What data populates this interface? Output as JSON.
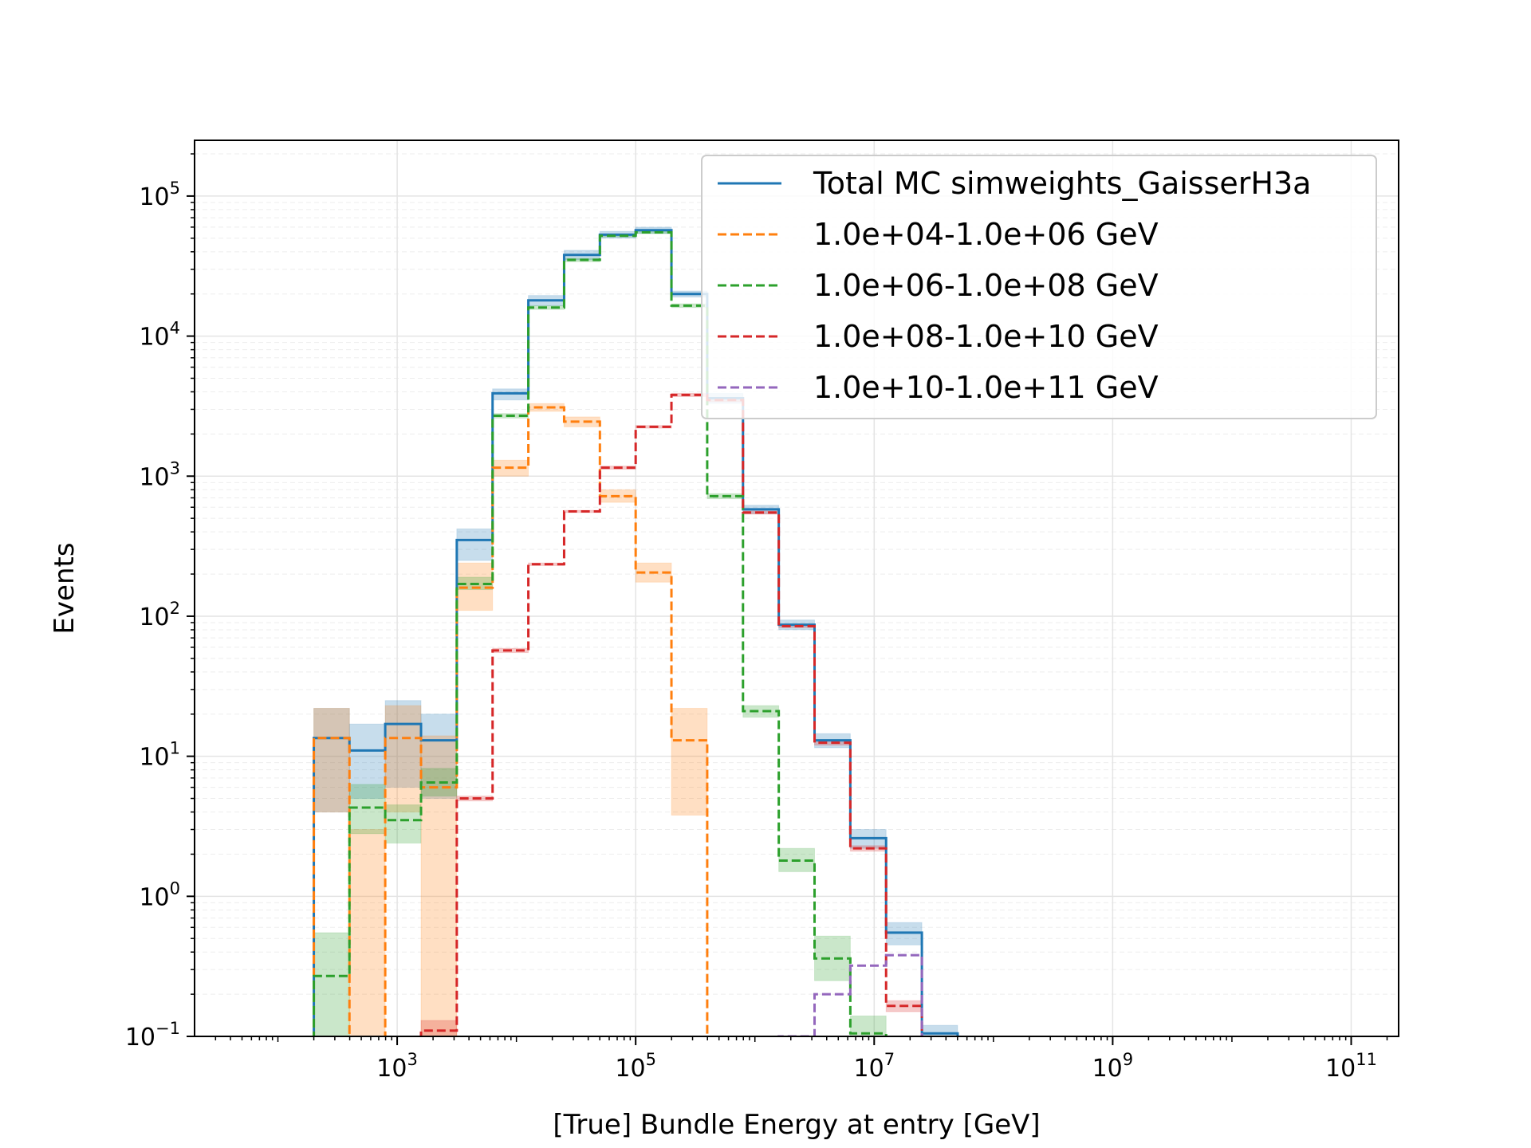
{
  "chart_data": {
    "type": "step-histogram",
    "xlabel": "[True] Bundle Energy at entry [GeV]",
    "ylabel": "Events",
    "xscale": "log",
    "yscale": "log",
    "xlim": [
      20,
      250000000000
    ],
    "ylim": [
      0.1,
      250000
    ],
    "grid": true,
    "legend_position": "top-right",
    "x_ticks": [
      {
        "value": 1000,
        "base": "10",
        "exp": "3"
      },
      {
        "value": 100000,
        "base": "10",
        "exp": "5"
      },
      {
        "value": 10000000,
        "base": "10",
        "exp": "7"
      },
      {
        "value": 1000000000,
        "base": "10",
        "exp": "9"
      },
      {
        "value": 100000000000,
        "base": "10",
        "exp": "11"
      }
    ],
    "y_ticks": [
      {
        "value": 0.1,
        "base": "10",
        "exp": "−1"
      },
      {
        "value": 1,
        "base": "10",
        "exp": "0"
      },
      {
        "value": 10,
        "base": "10",
        "exp": "1"
      },
      {
        "value": 100,
        "base": "10",
        "exp": "2"
      },
      {
        "value": 1000,
        "base": "10",
        "exp": "3"
      },
      {
        "value": 10000,
        "base": "10",
        "exp": "4"
      },
      {
        "value": 100000,
        "base": "10",
        "exp": "5"
      }
    ],
    "bin_edges": [
      200,
      398,
      794,
      1585,
      3162,
      6310,
      12589,
      25119,
      50119,
      100000,
      199526,
      398107,
      794328,
      1584893,
      3162278,
      6309573,
      12589254,
      25118864,
      50118723,
      100000000
    ],
    "series": [
      {
        "name": "Total MC simweights_GaisserH3a",
        "color": "#1f77b4",
        "dash": false,
        "values": [
          13.5,
          11,
          17,
          13,
          350,
          3900,
          18000,
          38000,
          53000,
          57000,
          20000,
          3600,
          580,
          87,
          13,
          2.6,
          0.55,
          0.105,
          null
        ],
        "band_low": [
          4,
          5,
          6,
          5,
          250,
          3500,
          16500,
          35000,
          50000,
          54000,
          19000,
          3300,
          540,
          80,
          11.5,
          2.2,
          0.45,
          0.09,
          null
        ],
        "band_high": [
          22,
          17,
          25,
          20,
          420,
          4200,
          19500,
          41000,
          56000,
          60000,
          21000,
          3900,
          620,
          94,
          14.5,
          3.0,
          0.65,
          0.12,
          null
        ]
      },
      {
        "name": "1.0e+04-1.0e+06 GeV",
        "color": "#ff7f0e",
        "dash": true,
        "values": [
          13.5,
          0.0001,
          13.5,
          6,
          160,
          1150,
          3100,
          2450,
          720,
          205,
          13,
          0.0001,
          null,
          null,
          null,
          null,
          null,
          null,
          null
        ],
        "band_low": [
          4,
          0.0001,
          4,
          0.0001,
          110,
          1000,
          2900,
          2250,
          650,
          175,
          3.8,
          0.0001,
          null,
          null,
          null,
          null,
          null,
          null,
          null
        ],
        "band_high": [
          22,
          3,
          23,
          14,
          240,
          1300,
          3300,
          2650,
          800,
          240,
          22,
          0.0001,
          null,
          null,
          null,
          null,
          null,
          null,
          null
        ]
      },
      {
        "name": "1.0e+06-1.0e+08 GeV",
        "color": "#2ca02c",
        "dash": true,
        "values": [
          0.27,
          4.3,
          3.5,
          6.5,
          170,
          2700,
          16000,
          35000,
          52000,
          55000,
          16500,
          720,
          21,
          1.8,
          0.36,
          0.105,
          null,
          null,
          null
        ],
        "band_low": [
          0.1,
          2.8,
          2.4,
          5.2,
          155,
          2600,
          15500,
          34000,
          51000,
          54000,
          16000,
          690,
          19,
          1.5,
          0.25,
          0.09,
          null,
          null,
          null
        ],
        "band_high": [
          0.55,
          6.3,
          4.5,
          8.2,
          190,
          2800,
          16500,
          36000,
          53000,
          56000,
          17000,
          750,
          23,
          2.2,
          0.52,
          0.14,
          null,
          null,
          null
        ]
      },
      {
        "name": "1.0e+08-1.0e+10 GeV",
        "color": "#d62728",
        "dash": true,
        "values": [
          null,
          null,
          null,
          0.11,
          5,
          57,
          235,
          560,
          1150,
          2250,
          3800,
          3500,
          550,
          85,
          12.5,
          2.2,
          0.165,
          null,
          null
        ],
        "band_low": [
          null,
          null,
          null,
          0.09,
          4.8,
          55,
          230,
          550,
          1120,
          2200,
          3700,
          3400,
          535,
          83,
          12.0,
          2.1,
          0.15,
          null,
          null
        ],
        "band_high": [
          null,
          null,
          null,
          0.13,
          5.2,
          59,
          240,
          570,
          1180,
          2300,
          3900,
          3600,
          565,
          87,
          13.0,
          2.3,
          0.18,
          null,
          null
        ]
      },
      {
        "name": "1.0e+10-1.0e+11 GeV",
        "color": "#9467bd",
        "dash": true,
        "values": [
          null,
          null,
          null,
          null,
          null,
          null,
          null,
          null,
          null,
          null,
          null,
          null,
          null,
          0.1,
          0.2,
          0.32,
          0.38,
          null,
          null
        ],
        "band_low": null,
        "band_high": null
      }
    ]
  }
}
